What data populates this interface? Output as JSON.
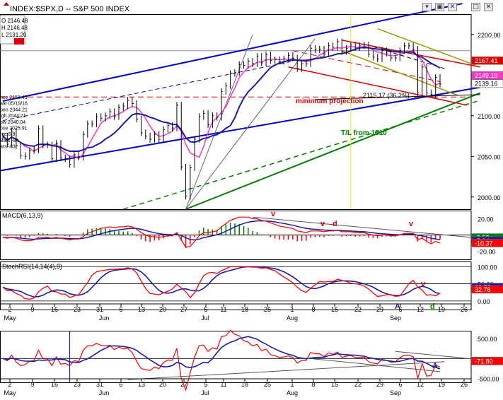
{
  "window": {
    "title": "INDEX:$SPX,D -- S&P 500 INDEX",
    "buttons": [
      "minimize",
      "maximize",
      "close"
    ]
  },
  "info_box": {
    "ohlc": [
      "O 2146.48",
      "H 2146.48",
      "L 2131.20"
    ],
    "extra": [
      "rice 2158.45",
      "ate 05/19/16",
      "pen 2044.21",
      "igh 2044.21",
      "ow 2040.04",
      "ose 2025.91",
      "rce 6.8",
      "Bars -84",
      "ars -83"
    ]
  },
  "colors": {
    "price": "#000000",
    "channel": "#0000cc",
    "ma_fast": "#ff33cc",
    "ma_slow": "#1a1aaa",
    "trend_green": "#008000",
    "downtrend_red": "#dd0000",
    "olive": "#999900",
    "macd_line": "#ff0000",
    "macd_signal": "#1a1aaa",
    "hist_pos": "#008000",
    "hist_neg": "#ff0000",
    "stoch_k": "#1a1aaa",
    "stoch_d": "#ff0000",
    "yellow_line": "#e6e600"
  },
  "price_panel": {
    "y_ticks": [
      "2200.00",
      "2150.00",
      "2100.00",
      "2050.00",
      "2000.00"
    ],
    "y_tick_values": [
      2200,
      2150,
      2100,
      2050,
      2000
    ],
    "last_labels": [
      {
        "text": "2167.41",
        "value": 2167.41,
        "bg": "#dd0000",
        "fg": "#ffffff"
      },
      {
        "text": "2149.19",
        "value": 2149.19,
        "bg": "#ff33cc",
        "fg": "#ffffff"
      },
      {
        "text": "2139.16",
        "value": 2139.16,
        "bg": "#ffffff",
        "fg": "#000000"
      }
    ],
    "annotations": {
      "min_projection": "minimum projection",
      "fib_label": "2115.17 (36.2%)",
      "tl_label": "T/L from 1810"
    }
  },
  "macd_panel": {
    "title": "MACD(6,13,9)",
    "y_ticks": [
      "20.00",
      "-20.00"
    ],
    "y_tick_values": [
      20,
      -20
    ],
    "labels": [
      {
        "text": "-3.53",
        "value": -3.53,
        "bg": "#008000",
        "fg": "#ffffff"
      },
      {
        "text": "-7.34",
        "value": -7.34,
        "bg": "#1a1aaa",
        "fg": "#ffffff"
      },
      {
        "text": "-10.37",
        "value": -10.37,
        "bg": "#ff0000",
        "fg": "#ffffff"
      }
    ],
    "marks": [
      "v",
      "v",
      "d",
      "v"
    ]
  },
  "stoch_panel": {
    "title": "StochRSI(14,14(4),9)",
    "y_ticks": [
      "100.00",
      "50.00",
      "0.00"
    ],
    "y_tick_values": [
      100,
      50,
      0
    ],
    "labels": [
      {
        "text": "39.53",
        "value": 39.53,
        "bg": "#1a1aaa",
        "fg": "#ffffff"
      },
      {
        "text": "32.78",
        "value": 32.78,
        "bg": "#ff0000",
        "fg": "#ffffff"
      }
    ],
    "marks": [
      "A",
      "v",
      "d"
    ]
  },
  "cci_panel": {
    "y_ticks": [
      "500.00",
      "-500.00"
    ],
    "y_tick_values": [
      500,
      -500
    ],
    "labels": [
      {
        "text": "-71.80",
        "value": -71.8,
        "bg": "#ff0000",
        "fg": "#ffffff"
      }
    ],
    "marks": [
      "A"
    ]
  },
  "x_axis": {
    "days": [
      "2",
      "9",
      "16",
      "23",
      "31",
      "6",
      "13",
      "20",
      "27",
      "5",
      "11",
      "18",
      "25",
      "1",
      "8",
      "15",
      "22",
      "29",
      "6",
      "12",
      "19",
      "26"
    ],
    "months": [
      "May",
      "Jun",
      "Jul",
      "Aug",
      "Sep"
    ]
  },
  "chart_data": {
    "type": "line",
    "title": "INDEX:$SPX,D -- S&P 500 INDEX",
    "x_dates": [
      "2016-04-28",
      "2016-04-29",
      "2016-05-02",
      "2016-05-03",
      "2016-05-04",
      "2016-05-05",
      "2016-05-06",
      "2016-05-09",
      "2016-05-10",
      "2016-05-11",
      "2016-05-12",
      "2016-05-13",
      "2016-05-16",
      "2016-05-17",
      "2016-05-18",
      "2016-05-19",
      "2016-05-20",
      "2016-05-23",
      "2016-05-24",
      "2016-05-25",
      "2016-05-26",
      "2016-05-27",
      "2016-05-31",
      "2016-06-01",
      "2016-06-02",
      "2016-06-03",
      "2016-06-06",
      "2016-06-07",
      "2016-06-08",
      "2016-06-09",
      "2016-06-10",
      "2016-06-13",
      "2016-06-14",
      "2016-06-15",
      "2016-06-16",
      "2016-06-17",
      "2016-06-20",
      "2016-06-21",
      "2016-06-22",
      "2016-06-23",
      "2016-06-24",
      "2016-06-27",
      "2016-06-28",
      "2016-06-29",
      "2016-06-30",
      "2016-07-01",
      "2016-07-05",
      "2016-07-06",
      "2016-07-07",
      "2016-07-08",
      "2016-07-11",
      "2016-07-12",
      "2016-07-13",
      "2016-07-14",
      "2016-07-15",
      "2016-07-18",
      "2016-07-19",
      "2016-07-20",
      "2016-07-21",
      "2016-07-22",
      "2016-07-25",
      "2016-07-26",
      "2016-07-27",
      "2016-07-28",
      "2016-07-29",
      "2016-08-01",
      "2016-08-02",
      "2016-08-03",
      "2016-08-04",
      "2016-08-05",
      "2016-08-08",
      "2016-08-09",
      "2016-08-10",
      "2016-08-11",
      "2016-08-12",
      "2016-08-15",
      "2016-08-16",
      "2016-08-17",
      "2016-08-18",
      "2016-08-19",
      "2016-08-22",
      "2016-08-23",
      "2016-08-24",
      "2016-08-25",
      "2016-08-26",
      "2016-08-29",
      "2016-08-30",
      "2016-08-31",
      "2016-09-01",
      "2016-09-02",
      "2016-09-06",
      "2016-09-07",
      "2016-09-08",
      "2016-09-09",
      "2016-09-12",
      "2016-09-13",
      "2016-09-14",
      "2016-09-15",
      "2016-09-16"
    ],
    "close": [
      2075,
      2065,
      2081,
      2063,
      2051,
      2050,
      2057,
      2058,
      2084,
      2064,
      2064,
      2047,
      2066,
      2048,
      2047,
      2040,
      2052,
      2049,
      2077,
      2090,
      2090,
      2099,
      2097,
      2100,
      2105,
      2099,
      2110,
      2112,
      2119,
      2115,
      2096,
      2079,
      2075,
      2071,
      2077,
      2071,
      2083,
      2088,
      2085,
      2113,
      2037,
      2001,
      2036,
      2071,
      2099,
      2103,
      2089,
      2100,
      2098,
      2130,
      2137,
      2152,
      2153,
      2163,
      2162,
      2167,
      2164,
      2173,
      2165,
      2175,
      2168,
      2169,
      2167,
      2170,
      2174,
      2171,
      2158,
      2164,
      2164,
      2183,
      2181,
      2182,
      2176,
      2186,
      2184,
      2191,
      2179,
      2183,
      2187,
      2184,
      2186,
      2187,
      2176,
      2172,
      2170,
      2180,
      2177,
      2171,
      2171,
      2180,
      2186,
      2186,
      2182,
      2128,
      2160,
      2128,
      2126,
      2147,
      2139
    ],
    "series": [
      {
        "name": "MACD(6,13,9)",
        "values": [
          -3,
          -4,
          -3,
          -4,
          -6,
          -7,
          -7,
          -6,
          -3,
          -3,
          -3,
          -4,
          -3,
          -4,
          -5,
          -6,
          -5,
          -5,
          -2,
          2,
          4,
          6,
          8,
          9,
          10,
          9,
          10,
          10,
          11,
          10,
          7,
          3,
          0,
          -2,
          -2,
          -3,
          -2,
          -1,
          -1,
          3,
          -6,
          -15,
          -14,
          -8,
          -1,
          3,
          3,
          4,
          5,
          10,
          14,
          18,
          20,
          22,
          22,
          22,
          20,
          20,
          18,
          17,
          15,
          13,
          11,
          10,
          9,
          8,
          5,
          4,
          3,
          5,
          5,
          5,
          4,
          5,
          5,
          6,
          4,
          4,
          4,
          3,
          3,
          3,
          1,
          0,
          -1,
          0,
          0,
          -1,
          -1,
          0,
          2,
          2,
          2,
          -6,
          -4,
          -8,
          -11,
          -8,
          -10
        ]
      },
      {
        "name": "StochRSI(14,14(4),9)",
        "values": [
          40,
          20,
          30,
          15,
          5,
          0,
          10,
          15,
          55,
          40,
          35,
          10,
          35,
          15,
          10,
          5,
          30,
          20,
          60,
          80,
          85,
          90,
          88,
          92,
          95,
          90,
          95,
          95,
          100,
          85,
          60,
          30,
          20,
          15,
          25,
          15,
          30,
          40,
          35,
          70,
          10,
          0,
          20,
          50,
          80,
          90,
          75,
          85,
          80,
          100,
          100,
          100,
          100,
          100,
          100,
          100,
          95,
          100,
          90,
          100,
          85,
          80,
          70,
          60,
          55,
          45,
          20,
          25,
          30,
          55,
          55,
          60,
          50,
          60,
          60,
          70,
          50,
          50,
          55,
          45,
          45,
          40,
          20,
          10,
          10,
          25,
          20,
          10,
          10,
          25,
          60,
          65,
          55,
          0,
          40,
          10,
          5,
          30,
          33
        ]
      }
    ],
    "ylim_price": [
      1985,
      2225
    ],
    "ylim_macd": [
      -30,
      30
    ],
    "ylim_stoch": [
      -25,
      115
    ],
    "ylim_cci": [
      -600,
      700
    ],
    "grid": false,
    "legend": "none"
  }
}
